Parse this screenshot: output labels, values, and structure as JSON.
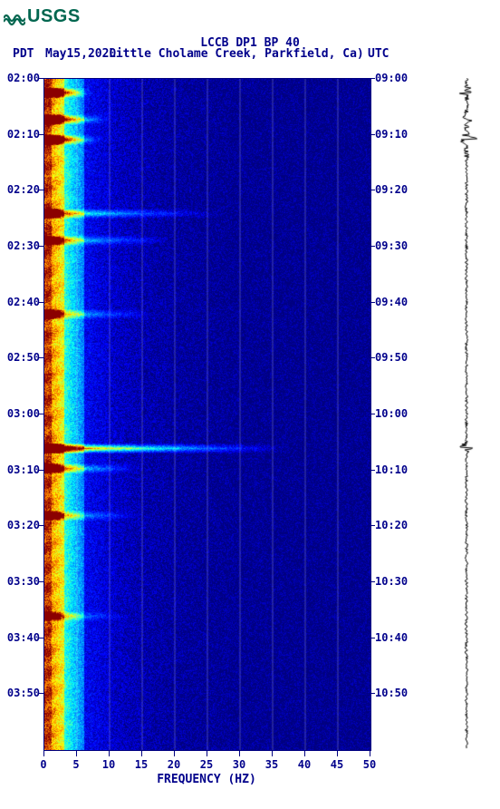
{
  "logo": {
    "text": "USGS",
    "color": "#00664f"
  },
  "header": {
    "title": "LCCB DP1 BP 40",
    "tz_left": "PDT",
    "date": "May15,2020",
    "location": "Little Cholame Creek, Parkfield, Ca)",
    "tz_right": "UTC"
  },
  "chart": {
    "type": "spectrogram",
    "background_color": "#ffffff",
    "axis_color": "#00008b",
    "font_family": "monospace",
    "title_fontsize": 13,
    "label_fontsize": 12,
    "x": {
      "label": "FREQUENCY (HZ)",
      "min": 0,
      "max": 50,
      "ticks": [
        0,
        5,
        10,
        15,
        20,
        25,
        30,
        35,
        40,
        45,
        50
      ]
    },
    "y_left": {
      "label_prefix": "PDT",
      "ticks": [
        "02:00",
        "02:10",
        "02:20",
        "02:30",
        "02:40",
        "02:50",
        "03:00",
        "03:10",
        "03:20",
        "03:30",
        "03:40",
        "03:50"
      ]
    },
    "y_right": {
      "label_prefix": "UTC",
      "ticks": [
        "09:00",
        "09:10",
        "09:20",
        "09:30",
        "09:40",
        "09:50",
        "10:00",
        "10:10",
        "10:20",
        "10:30",
        "10:40",
        "10:50"
      ]
    },
    "colormap": {
      "stops": [
        {
          "v": 0.0,
          "c": "#000080"
        },
        {
          "v": 0.15,
          "c": "#0000ff"
        },
        {
          "v": 0.35,
          "c": "#007fff"
        },
        {
          "v": 0.5,
          "c": "#00ffff"
        },
        {
          "v": 0.62,
          "c": "#7fff7f"
        },
        {
          "v": 0.75,
          "c": "#ffff00"
        },
        {
          "v": 0.87,
          "c": "#ff7f00"
        },
        {
          "v": 1.0,
          "c": "#8b0000"
        }
      ]
    },
    "events": [
      {
        "t": 0.02,
        "strength": 0.95,
        "extent": 0.15
      },
      {
        "t": 0.06,
        "strength": 0.9,
        "extent": 0.2
      },
      {
        "t": 0.09,
        "strength": 0.92,
        "extent": 0.18
      },
      {
        "t": 0.2,
        "strength": 0.55,
        "extent": 0.55
      },
      {
        "t": 0.24,
        "strength": 0.5,
        "extent": 0.4
      },
      {
        "t": 0.35,
        "strength": 0.45,
        "extent": 0.35
      },
      {
        "t": 0.55,
        "strength": 0.98,
        "extent": 0.75
      },
      {
        "t": 0.58,
        "strength": 0.6,
        "extent": 0.3
      },
      {
        "t": 0.65,
        "strength": 0.45,
        "extent": 0.3
      },
      {
        "t": 0.8,
        "strength": 0.4,
        "extent": 0.25
      }
    ],
    "gridlines_x": [
      5,
      10,
      15,
      20,
      25,
      30,
      35,
      40,
      45
    ],
    "grid_color": "#b8b8e0"
  },
  "seismogram": {
    "color": "#000000",
    "bg": "#ffffff",
    "amplitude_base": 1.0,
    "events": [
      {
        "t": 0.02,
        "amp": 8
      },
      {
        "t": 0.06,
        "amp": 6
      },
      {
        "t": 0.09,
        "amp": 7
      },
      {
        "t": 0.55,
        "amp": 9
      }
    ]
  },
  "footnote": ""
}
